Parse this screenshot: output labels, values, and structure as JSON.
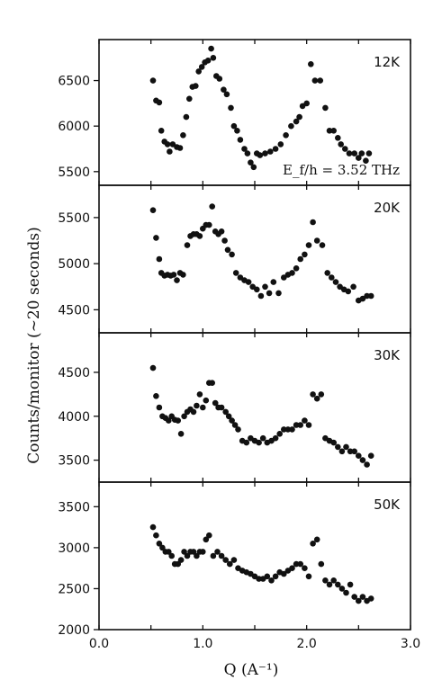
{
  "chart_data": {
    "type": "scatter",
    "xlabel": "Q (A⁻¹)",
    "ylabel": "Counts/monitor (~20 seconds)",
    "xlim": [
      0.0,
      3.0
    ],
    "x_ticks": [
      "0.0",
      "1.0",
      "2.0",
      "3.0"
    ],
    "annotation": "E_f/h = 3.52 THz",
    "grid": false,
    "panels": [
      {
        "name": "12K",
        "ylim": [
          5350,
          6950
        ],
        "y_ticks": [
          5500,
          6000,
          6500
        ],
        "points": [
          [
            0.52,
            6500
          ],
          [
            0.55,
            6280
          ],
          [
            0.58,
            6260
          ],
          [
            0.6,
            5950
          ],
          [
            0.63,
            5830
          ],
          [
            0.66,
            5800
          ],
          [
            0.68,
            5720
          ],
          [
            0.71,
            5800
          ],
          [
            0.75,
            5770
          ],
          [
            0.78,
            5760
          ],
          [
            0.81,
            5900
          ],
          [
            0.84,
            6100
          ],
          [
            0.87,
            6300
          ],
          [
            0.9,
            6430
          ],
          [
            0.93,
            6440
          ],
          [
            0.96,
            6600
          ],
          [
            0.99,
            6650
          ],
          [
            1.02,
            6700
          ],
          [
            1.05,
            6720
          ],
          [
            1.08,
            6850
          ],
          [
            1.1,
            6750
          ],
          [
            1.13,
            6550
          ],
          [
            1.16,
            6520
          ],
          [
            1.2,
            6400
          ],
          [
            1.23,
            6350
          ],
          [
            1.27,
            6200
          ],
          [
            1.3,
            6000
          ],
          [
            1.33,
            5950
          ],
          [
            1.36,
            5850
          ],
          [
            1.4,
            5750
          ],
          [
            1.43,
            5700
          ],
          [
            1.46,
            5600
          ],
          [
            1.49,
            5550
          ],
          [
            1.52,
            5700
          ],
          [
            1.55,
            5680
          ],
          [
            1.6,
            5700
          ],
          [
            1.65,
            5720
          ],
          [
            1.7,
            5750
          ],
          [
            1.75,
            5800
          ],
          [
            1.8,
            5900
          ],
          [
            1.85,
            6000
          ],
          [
            1.9,
            6050
          ],
          [
            1.93,
            6100
          ],
          [
            1.96,
            6220
          ],
          [
            2.0,
            6250
          ],
          [
            2.04,
            6680
          ],
          [
            2.08,
            6500
          ],
          [
            2.13,
            6500
          ],
          [
            2.18,
            6200
          ],
          [
            2.22,
            5950
          ],
          [
            2.26,
            5950
          ],
          [
            2.3,
            5870
          ],
          [
            2.33,
            5800
          ],
          [
            2.37,
            5750
          ],
          [
            2.41,
            5700
          ],
          [
            2.46,
            5700
          ],
          [
            2.5,
            5650
          ],
          [
            2.53,
            5700
          ],
          [
            2.57,
            5620
          ],
          [
            2.6,
            5700
          ]
        ]
      },
      {
        "name": "20K",
        "ylim": [
          4250,
          5850
        ],
        "y_ticks": [
          4500,
          5000,
          5500
        ],
        "points": [
          [
            0.52,
            5580
          ],
          [
            0.55,
            5280
          ],
          [
            0.58,
            5050
          ],
          [
            0.6,
            4900
          ],
          [
            0.63,
            4870
          ],
          [
            0.66,
            4880
          ],
          [
            0.69,
            4870
          ],
          [
            0.72,
            4880
          ],
          [
            0.75,
            4820
          ],
          [
            0.78,
            4900
          ],
          [
            0.81,
            4880
          ],
          [
            0.85,
            5200
          ],
          [
            0.88,
            5300
          ],
          [
            0.91,
            5320
          ],
          [
            0.94,
            5320
          ],
          [
            0.97,
            5300
          ],
          [
            1.0,
            5380
          ],
          [
            1.03,
            5420
          ],
          [
            1.06,
            5420
          ],
          [
            1.09,
            5620
          ],
          [
            1.12,
            5350
          ],
          [
            1.15,
            5320
          ],
          [
            1.18,
            5350
          ],
          [
            1.21,
            5250
          ],
          [
            1.24,
            5150
          ],
          [
            1.28,
            5100
          ],
          [
            1.32,
            4900
          ],
          [
            1.36,
            4850
          ],
          [
            1.4,
            4820
          ],
          [
            1.44,
            4800
          ],
          [
            1.48,
            4750
          ],
          [
            1.52,
            4720
          ],
          [
            1.56,
            4650
          ],
          [
            1.6,
            4750
          ],
          [
            1.64,
            4680
          ],
          [
            1.68,
            4800
          ],
          [
            1.73,
            4680
          ],
          [
            1.78,
            4850
          ],
          [
            1.82,
            4880
          ],
          [
            1.86,
            4900
          ],
          [
            1.9,
            4950
          ],
          [
            1.94,
            5050
          ],
          [
            1.98,
            5100
          ],
          [
            2.02,
            5200
          ],
          [
            2.06,
            5450
          ],
          [
            2.1,
            5250
          ],
          [
            2.15,
            5200
          ],
          [
            2.2,
            4900
          ],
          [
            2.24,
            4850
          ],
          [
            2.28,
            4800
          ],
          [
            2.32,
            4750
          ],
          [
            2.36,
            4720
          ],
          [
            2.4,
            4700
          ],
          [
            2.45,
            4750
          ],
          [
            2.5,
            4600
          ],
          [
            2.54,
            4620
          ],
          [
            2.58,
            4650
          ],
          [
            2.62,
            4650
          ]
        ]
      },
      {
        "name": "30K",
        "ylim": [
          3250,
          4950
        ],
        "y_ticks": [
          3500,
          4000,
          4500
        ],
        "points": [
          [
            0.52,
            4550
          ],
          [
            0.55,
            4230
          ],
          [
            0.58,
            4100
          ],
          [
            0.61,
            4000
          ],
          [
            0.64,
            3980
          ],
          [
            0.67,
            3950
          ],
          [
            0.7,
            4000
          ],
          [
            0.73,
            3960
          ],
          [
            0.76,
            3950
          ],
          [
            0.79,
            3800
          ],
          [
            0.82,
            4000
          ],
          [
            0.85,
            4050
          ],
          [
            0.88,
            4080
          ],
          [
            0.91,
            4050
          ],
          [
            0.94,
            4120
          ],
          [
            0.97,
            4250
          ],
          [
            1.0,
            4100
          ],
          [
            1.03,
            4180
          ],
          [
            1.06,
            4380
          ],
          [
            1.09,
            4380
          ],
          [
            1.12,
            4150
          ],
          [
            1.15,
            4100
          ],
          [
            1.18,
            4100
          ],
          [
            1.22,
            4050
          ],
          [
            1.25,
            4000
          ],
          [
            1.28,
            3950
          ],
          [
            1.31,
            3900
          ],
          [
            1.34,
            3850
          ],
          [
            1.38,
            3720
          ],
          [
            1.42,
            3700
          ],
          [
            1.46,
            3750
          ],
          [
            1.5,
            3720
          ],
          [
            1.54,
            3700
          ],
          [
            1.58,
            3750
          ],
          [
            1.62,
            3700
          ],
          [
            1.66,
            3720
          ],
          [
            1.7,
            3750
          ],
          [
            1.74,
            3800
          ],
          [
            1.78,
            3850
          ],
          [
            1.82,
            3850
          ],
          [
            1.86,
            3850
          ],
          [
            1.9,
            3900
          ],
          [
            1.94,
            3900
          ],
          [
            1.98,
            3950
          ],
          [
            2.02,
            3900
          ],
          [
            2.06,
            4250
          ],
          [
            2.1,
            4200
          ],
          [
            2.14,
            4250
          ],
          [
            2.18,
            3750
          ],
          [
            2.22,
            3720
          ],
          [
            2.26,
            3700
          ],
          [
            2.3,
            3650
          ],
          [
            2.34,
            3600
          ],
          [
            2.38,
            3650
          ],
          [
            2.42,
            3600
          ],
          [
            2.46,
            3600
          ],
          [
            2.5,
            3550
          ],
          [
            2.54,
            3500
          ],
          [
            2.58,
            3450
          ],
          [
            2.62,
            3550
          ]
        ]
      },
      {
        "name": "50K",
        "ylim": [
          2000,
          3800
        ],
        "y_ticks": [
          2000,
          2500,
          3000,
          3500
        ],
        "points": [
          [
            0.52,
            3250
          ],
          [
            0.55,
            3150
          ],
          [
            0.58,
            3050
          ],
          [
            0.61,
            3000
          ],
          [
            0.64,
            2950
          ],
          [
            0.67,
            2950
          ],
          [
            0.7,
            2900
          ],
          [
            0.73,
            2800
          ],
          [
            0.76,
            2800
          ],
          [
            0.79,
            2850
          ],
          [
            0.82,
            2950
          ],
          [
            0.85,
            2900
          ],
          [
            0.88,
            2950
          ],
          [
            0.91,
            2950
          ],
          [
            0.94,
            2900
          ],
          [
            0.97,
            2950
          ],
          [
            1.0,
            2950
          ],
          [
            1.03,
            3100
          ],
          [
            1.06,
            3150
          ],
          [
            1.1,
            2900
          ],
          [
            1.14,
            2950
          ],
          [
            1.18,
            2900
          ],
          [
            1.22,
            2850
          ],
          [
            1.26,
            2800
          ],
          [
            1.3,
            2850
          ],
          [
            1.34,
            2750
          ],
          [
            1.38,
            2720
          ],
          [
            1.42,
            2700
          ],
          [
            1.46,
            2680
          ],
          [
            1.5,
            2650
          ],
          [
            1.54,
            2620
          ],
          [
            1.58,
            2620
          ],
          [
            1.62,
            2650
          ],
          [
            1.66,
            2600
          ],
          [
            1.7,
            2650
          ],
          [
            1.74,
            2700
          ],
          [
            1.78,
            2680
          ],
          [
            1.82,
            2720
          ],
          [
            1.86,
            2750
          ],
          [
            1.9,
            2800
          ],
          [
            1.94,
            2800
          ],
          [
            1.98,
            2750
          ],
          [
            2.02,
            2650
          ],
          [
            2.06,
            3050
          ],
          [
            2.1,
            3100
          ],
          [
            2.14,
            2800
          ],
          [
            2.18,
            2600
          ],
          [
            2.22,
            2550
          ],
          [
            2.26,
            2600
          ],
          [
            2.3,
            2550
          ],
          [
            2.34,
            2500
          ],
          [
            2.38,
            2450
          ],
          [
            2.42,
            2550
          ],
          [
            2.46,
            2400
          ],
          [
            2.5,
            2350
          ],
          [
            2.54,
            2400
          ],
          [
            2.58,
            2350
          ],
          [
            2.62,
            2380
          ]
        ]
      }
    ]
  }
}
